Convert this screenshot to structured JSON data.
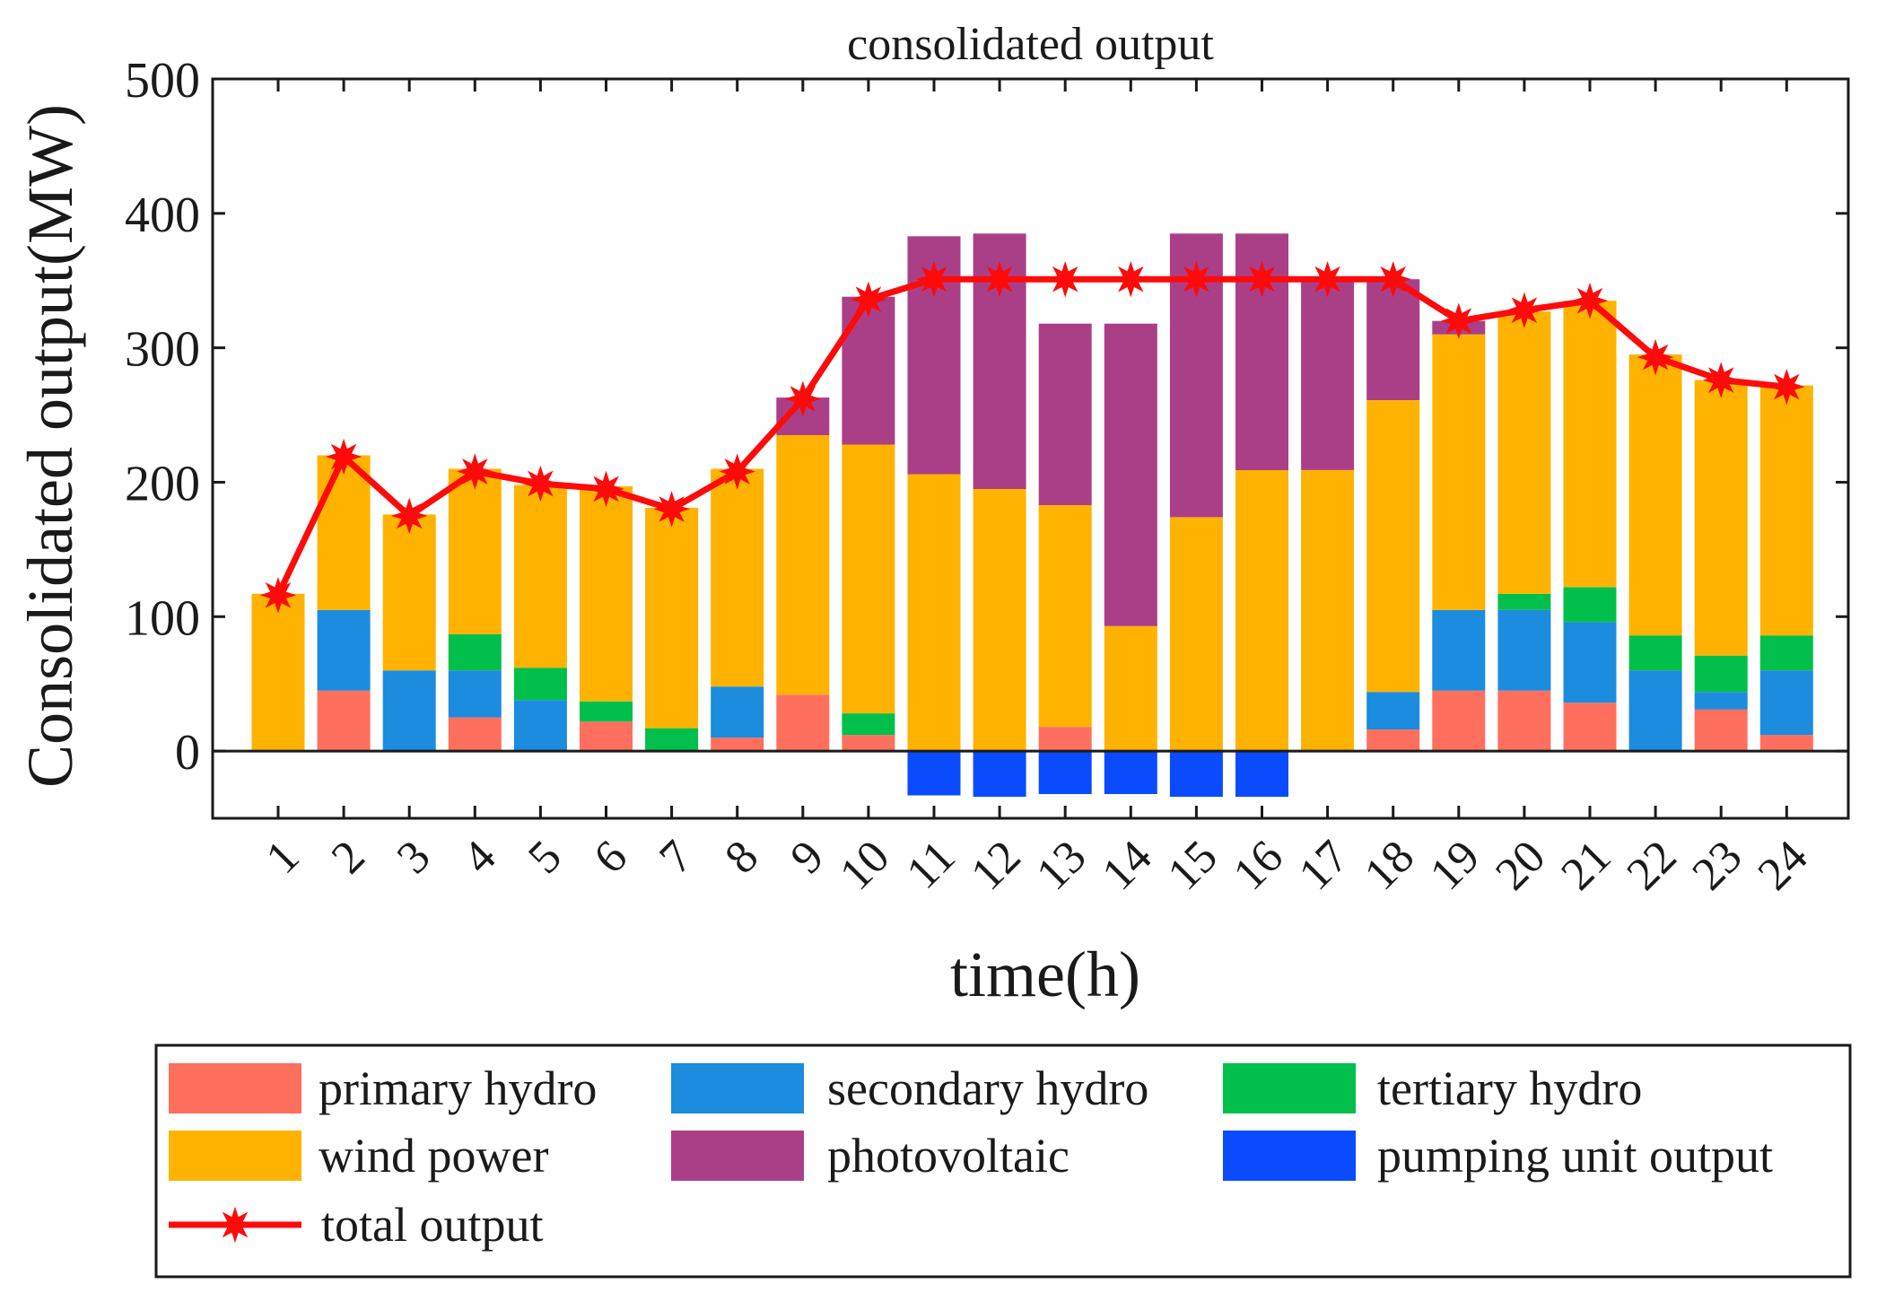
{
  "chart_data": {
    "type": "bar",
    "stacked": true,
    "title": "consolidated output",
    "xlabel": "time(h)",
    "ylabel": "Consolidated output(MW)",
    "ylim": [
      -50,
      500
    ],
    "yticks": [
      0,
      100,
      200,
      300,
      400,
      500
    ],
    "grid": false,
    "categories": [
      "1",
      "2",
      "3",
      "4",
      "5",
      "6",
      "7",
      "8",
      "9",
      "10",
      "11",
      "12",
      "13",
      "14",
      "15",
      "16",
      "17",
      "18",
      "19",
      "20",
      "21",
      "22",
      "23",
      "24"
    ],
    "series": [
      {
        "name": "primary hydro",
        "color": "#FF6F5E",
        "values": [
          0,
          45,
          0,
          25,
          0,
          22,
          0,
          10,
          42,
          12,
          0,
          0,
          18,
          0,
          0,
          0,
          0,
          16,
          45,
          45,
          36,
          0,
          31,
          12
        ]
      },
      {
        "name": "secondary hydro",
        "color": "#1B8CDE",
        "values": [
          0,
          60,
          60,
          35,
          38,
          0,
          0,
          38,
          0,
          0,
          0,
          0,
          0,
          0,
          0,
          0,
          0,
          28,
          60,
          60,
          60,
          60,
          13,
          48
        ]
      },
      {
        "name": "tertiary hydro",
        "color": "#00C04B",
        "values": [
          0,
          0,
          0,
          27,
          24,
          15,
          17,
          0,
          0,
          16,
          0,
          0,
          0,
          0,
          0,
          0,
          0,
          0,
          0,
          12,
          26,
          26,
          27,
          26
        ]
      },
      {
        "name": "wind power",
        "color": "#FFB300",
        "values": [
          117,
          115,
          116,
          123,
          136,
          160,
          164,
          162,
          193,
          200,
          206,
          195,
          165,
          93,
          174,
          209,
          209,
          217,
          205,
          210,
          213,
          209,
          205,
          186
        ]
      },
      {
        "name": "photovoltaic",
        "color": "#AA3F88",
        "values": [
          0,
          0,
          0,
          0,
          0,
          0,
          0,
          0,
          28,
          110,
          177,
          190,
          135,
          225,
          211,
          176,
          141,
          90,
          10,
          0,
          0,
          0,
          0,
          0
        ]
      },
      {
        "name": "pumping unit output",
        "color": "#0A4BFF",
        "values": [
          0,
          0,
          0,
          0,
          0,
          0,
          0,
          0,
          0,
          0,
          -33,
          -34,
          -32,
          -32,
          -34,
          -34,
          0,
          0,
          0,
          0,
          0,
          0,
          0,
          0
        ]
      }
    ],
    "line_series": {
      "name": "total output",
      "color": "#FF0A0A",
      "values": [
        116,
        219,
        175,
        208,
        199,
        195,
        180,
        208,
        262,
        336,
        351,
        351,
        351,
        351,
        351,
        351,
        351,
        351,
        320,
        328,
        335,
        293,
        276,
        271
      ]
    },
    "legend_position": "bottom"
  }
}
